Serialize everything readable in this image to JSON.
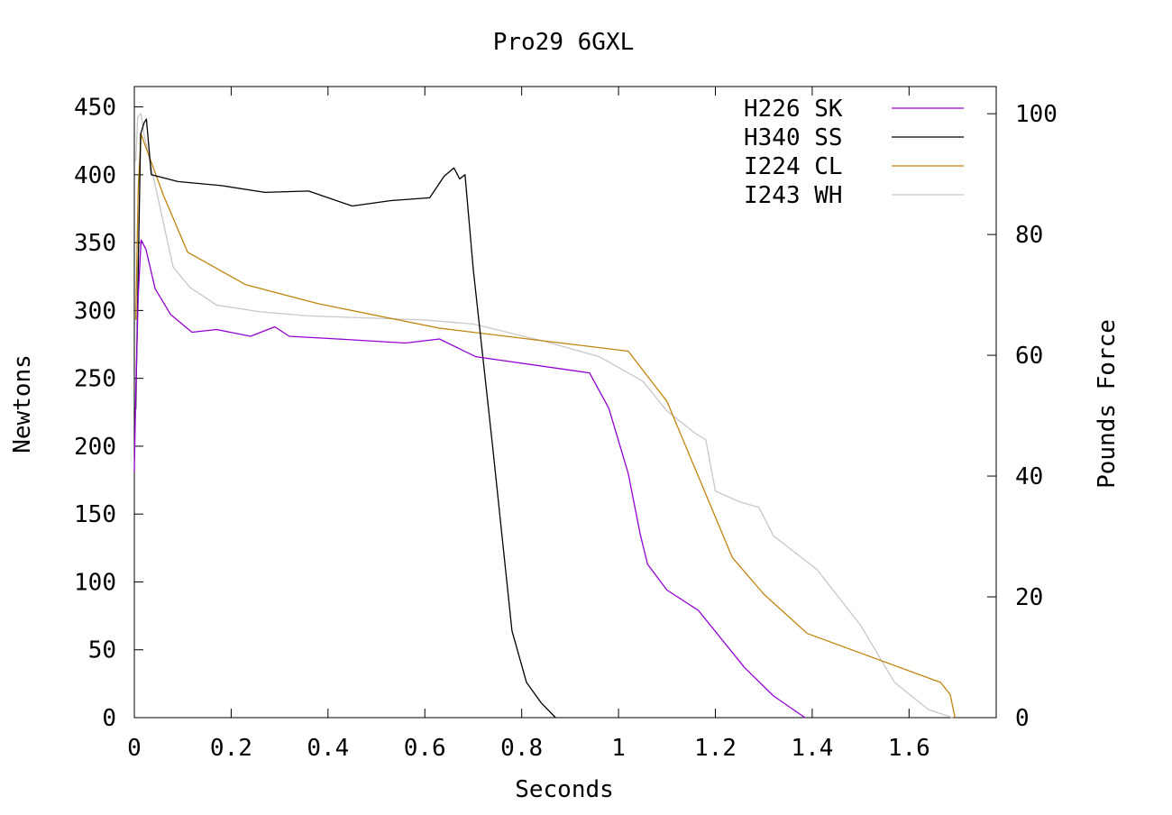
{
  "chart_data": {
    "type": "line",
    "title": "Pro29 6GXL",
    "xlabel": "Seconds",
    "ylabel": "Newtons",
    "y2label": "Pounds Force",
    "xlim": [
      0,
      1.78
    ],
    "ylim": [
      0,
      465
    ],
    "y2lim": [
      0,
      104.5
    ],
    "x_ticks": [
      0,
      0.2,
      0.4,
      0.6,
      0.8,
      1,
      1.2,
      1.4,
      1.6
    ],
    "x_tick_labels": [
      "0",
      "0.2",
      "0.4",
      "0.6",
      "0.8",
      "1",
      "1.2",
      "1.4",
      "1.6"
    ],
    "y_ticks": [
      0,
      50,
      100,
      150,
      200,
      250,
      300,
      350,
      400,
      450
    ],
    "y_tick_labels": [
      "0",
      "50",
      "100",
      "150",
      "200",
      "250",
      "300",
      "350",
      "400",
      "450"
    ],
    "y2_ticks": [
      0,
      20,
      40,
      60,
      80,
      100
    ],
    "y2_tick_labels": [
      "0",
      "20",
      "40",
      "60",
      "80",
      "100"
    ],
    "grid": false,
    "legend_position": "top-right",
    "series": [
      {
        "name": "H226 SK",
        "color": "#9400d3",
        "x": [
          0,
          0.003,
          0.008,
          0.014,
          0.024,
          0.043,
          0.075,
          0.119,
          0.17,
          0.24,
          0.29,
          0.32,
          0.42,
          0.56,
          0.63,
          0.705,
          0.94,
          0.98,
          1.02,
          1.045,
          1.06,
          1.1,
          1.165,
          1.26,
          1.32,
          1.385
        ],
        "y": [
          181,
          240,
          310,
          352,
          345,
          316,
          297,
          284,
          286,
          281,
          288,
          281,
          279,
          276,
          279,
          266,
          254,
          228,
          180,
          135,
          113,
          94,
          79,
          37,
          16,
          0
        ]
      },
      {
        "name": "H340 SS",
        "color": "#000000",
        "x": [
          0.003,
          0.008,
          0.013,
          0.02,
          0.025,
          0.035,
          0.09,
          0.18,
          0.27,
          0.36,
          0.45,
          0.53,
          0.61,
          0.64,
          0.66,
          0.672,
          0.683,
          0.7,
          0.74,
          0.78,
          0.81,
          0.84,
          0.87
        ],
        "y": [
          227,
          330,
          430,
          438,
          441,
          400,
          395,
          392,
          387,
          388,
          377,
          381,
          383,
          399,
          405,
          397,
          400,
          330,
          200,
          64,
          26,
          11,
          0
        ]
      },
      {
        "name": "I224 CL",
        "color": "#c0840c",
        "x": [
          0.003,
          0.008,
          0.014,
          0.024,
          0.06,
          0.11,
          0.23,
          0.38,
          0.63,
          1.02,
          1.1,
          1.235,
          1.3,
          1.39,
          1.665,
          1.685,
          1.695
        ],
        "y": [
          293,
          390,
          430,
          420,
          385,
          343,
          319,
          305,
          287,
          270,
          233,
          118,
          91,
          62,
          26,
          17,
          0
        ]
      },
      {
        "name": "I243 WH",
        "color": "#c8c8c8",
        "x": [
          0.003,
          0.007,
          0.014,
          0.02,
          0.08,
          0.115,
          0.17,
          0.26,
          0.36,
          0.6,
          0.7,
          0.85,
          0.96,
          1.05,
          1.1,
          1.16,
          1.18,
          1.2,
          1.25,
          1.29,
          1.32,
          1.41,
          1.5,
          1.57,
          1.64,
          1.69
        ],
        "y": [
          410,
          443,
          445,
          430,
          332,
          317,
          304,
          299,
          296,
          293,
          290,
          277,
          266,
          248,
          226,
          209,
          205,
          167,
          159,
          155,
          134,
          109,
          68,
          26,
          6,
          0
        ]
      }
    ]
  }
}
